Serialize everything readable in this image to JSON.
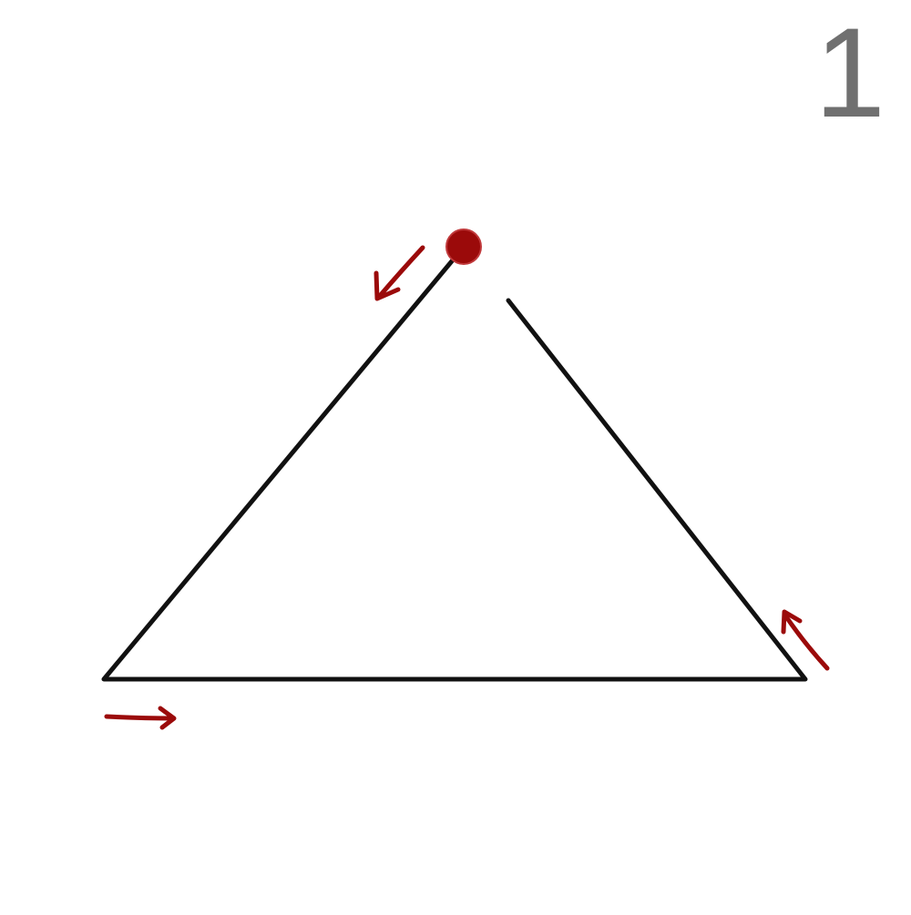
{
  "step": {
    "number": "1"
  },
  "colors": {
    "line": "#111111",
    "accent": "#9b0a0a",
    "number": "#707070",
    "background": "#ffffff"
  },
  "shapes": {
    "figure": "triangle-with-gap-at-apex",
    "start_marker": "start-dot-icon",
    "direction_arrows": [
      "arrow-down-left-icon",
      "arrow-right-icon",
      "arrow-up-left-icon"
    ]
  }
}
